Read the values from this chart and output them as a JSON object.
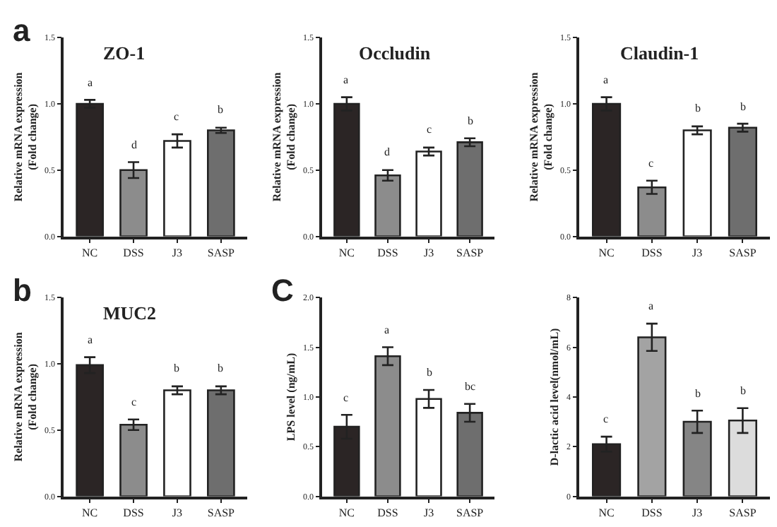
{
  "chart_data": [
    {
      "type": "bar",
      "title": "ZO-1",
      "ylabel": "Relative mRNA expression\n(Fold change)",
      "categories": [
        "NC",
        "DSS",
        "J3",
        "SASP"
      ],
      "values": [
        1.0,
        0.5,
        0.72,
        0.8
      ],
      "errors": [
        0.03,
        0.06,
        0.05,
        0.02
      ],
      "colors": [
        "#2b2525",
        "#8c8c8c",
        "#ffffff",
        "#6e6e6e"
      ],
      "ylim": [
        0,
        1.5
      ],
      "yticks": [
        {
          "value": 0,
          "label": "0.0"
        },
        {
          "value": 0.5,
          "label": "0.5"
        },
        {
          "value": 1,
          "label": "1.0"
        },
        {
          "value": 1.5,
          "label": "1.5"
        }
      ],
      "annotations": [
        "a",
        "d",
        "c",
        "b",
        "a"
      ]
    },
    {
      "type": "bar",
      "title": "Occludin",
      "ylabel": "Relative mRNA expression\n(Fold change)",
      "categories": [
        "NC",
        "DSS",
        "J3",
        "SASP"
      ],
      "values": [
        1.0,
        0.46,
        0.64,
        0.71
      ],
      "errors": [
        0.05,
        0.04,
        0.03,
        0.03
      ],
      "colors": [
        "#2b2525",
        "#8c8c8c",
        "#ffffff",
        "#6e6e6e"
      ],
      "ylim": [
        0,
        1.5
      ],
      "yticks": [
        {
          "value": 0,
          "label": "0.0"
        },
        {
          "value": 0.5,
          "label": "0.5"
        },
        {
          "value": 1,
          "label": "1.0"
        },
        {
          "value": 1.5,
          "label": "1.5"
        }
      ],
      "annotations": [
        "a",
        "d",
        "c",
        "b"
      ]
    },
    {
      "type": "bar",
      "title": "Claudin-1",
      "ylabel": "Relative mRNA expression\n(Fold change)",
      "categories": [
        "NC",
        "DSS",
        "J3",
        "SASP"
      ],
      "values": [
        1.0,
        0.37,
        0.8,
        0.82
      ],
      "errors": [
        0.05,
        0.05,
        0.03,
        0.03
      ],
      "colors": [
        "#2b2525",
        "#8c8c8c",
        "#ffffff",
        "#6e6e6e"
      ],
      "ylim": [
        0,
        1.5
      ],
      "yticks": [
        {
          "value": 0,
          "label": "0.0"
        },
        {
          "value": 0.5,
          "label": "0.5"
        },
        {
          "value": 1,
          "label": "1.0"
        },
        {
          "value": 1.5,
          "label": "1.5"
        }
      ],
      "annotations": [
        "a",
        "c",
        "b",
        "b"
      ]
    },
    {
      "type": "bar",
      "title": "MUC2",
      "ylabel": "Relative mRNA expression\n(Fold change)",
      "categories": [
        "NC",
        "DSS",
        "J3",
        "SASP"
      ],
      "values": [
        0.99,
        0.54,
        0.8,
        0.8
      ],
      "errors": [
        0.06,
        0.04,
        0.03,
        0.03
      ],
      "colors": [
        "#2b2525",
        "#8c8c8c",
        "#ffffff",
        "#6e6e6e"
      ],
      "ylim": [
        0,
        1.5
      ],
      "yticks": [
        {
          "value": 0,
          "label": "0.0"
        },
        {
          "value": 0.5,
          "label": "0.5"
        },
        {
          "value": 1,
          "label": "1.0"
        },
        {
          "value": 1.5,
          "label": "1.5"
        }
      ],
      "annotations": [
        "a",
        "c",
        "b",
        "b",
        "b"
      ]
    },
    {
      "type": "bar",
      "ylabel": "LPS level (ng/mL)",
      "categories": [
        "NC",
        "DSS",
        "J3",
        "SASP"
      ],
      "values": [
        0.7,
        1.41,
        0.98,
        0.84
      ],
      "errors": [
        0.12,
        0.09,
        0.09,
        0.09
      ],
      "colors": [
        "#2b2525",
        "#8c8c8c",
        "#ffffff",
        "#6e6e6e"
      ],
      "ylim": [
        0,
        2.0
      ],
      "yticks": [
        {
          "value": 0,
          "label": "0.0"
        },
        {
          "value": 0.5,
          "label": "0.5"
        },
        {
          "value": 1,
          "label": "1.0"
        },
        {
          "value": 1.5,
          "label": "1.5"
        },
        {
          "value": 2,
          "label": "2.0"
        }
      ],
      "annotations": [
        "c",
        "a",
        "b",
        "bc",
        "C"
      ]
    },
    {
      "type": "bar",
      "ylabel": "D-lactic acid level(nmol/mL)",
      "categories": [
        "NC",
        "DSS",
        "J3",
        "SASP"
      ],
      "values": [
        2.1,
        6.4,
        3.0,
        3.05
      ],
      "errors": [
        0.3,
        0.55,
        0.45,
        0.5
      ],
      "colors": [
        "#2b2525",
        "#a3a3a3",
        "#858585",
        "#dcdcdc"
      ],
      "ylim": [
        0,
        8
      ],
      "yticks": [
        0,
        2,
        4,
        6,
        8
      ],
      "annotations": [
        "c",
        "a",
        "b",
        "b"
      ]
    }
  ]
}
